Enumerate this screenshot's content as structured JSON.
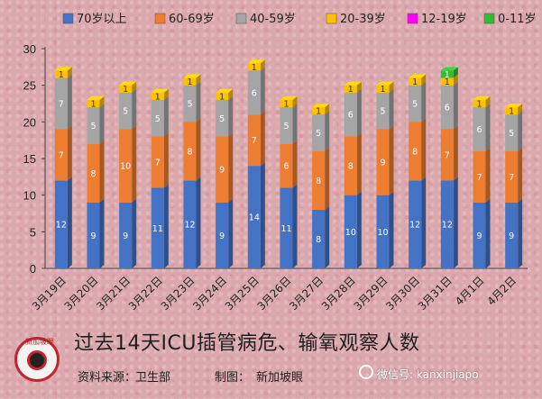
{
  "chart_data": {
    "type": "bar",
    "stacked": true,
    "categories": [
      "3月19日",
      "3月20日",
      "3月21日",
      "3月22日",
      "3月23日",
      "3月24日",
      "3月25日",
      "3月26日",
      "3月27日",
      "3月28日",
      "3月29日",
      "3月30日",
      "3月31日",
      "4月1日",
      "4月2日"
    ],
    "series": [
      {
        "name": "70岁以上",
        "color": "#4472c4",
        "values": [
          12,
          9,
          9,
          11,
          12,
          9,
          14,
          11,
          8,
          10,
          10,
          12,
          12,
          9,
          9
        ]
      },
      {
        "name": "60-69岁",
        "color": "#ed7d31",
        "values": [
          7,
          8,
          10,
          7,
          8,
          9,
          7,
          6,
          8,
          8,
          9,
          8,
          7,
          7,
          7
        ]
      },
      {
        "name": "40-59岁",
        "color": "#a5a5a5",
        "values": [
          7,
          5,
          5,
          5,
          5,
          5,
          6,
          5,
          5,
          6,
          5,
          5,
          6,
          6,
          5
        ]
      },
      {
        "name": "20-39岁",
        "color": "#ffc000",
        "values": [
          1,
          1,
          1,
          1,
          1,
          1,
          1,
          1,
          1,
          1,
          1,
          1,
          1,
          1,
          1
        ]
      },
      {
        "name": "12-19岁",
        "color": "#ff00ff",
        "values": [
          0,
          0,
          0,
          0,
          0,
          0,
          0,
          0,
          0,
          0,
          0,
          0,
          0,
          0,
          0
        ]
      },
      {
        "name": "0-11岁",
        "color": "#33bb33",
        "values": [
          0,
          0,
          0,
          0,
          0,
          0,
          0,
          0,
          0,
          0,
          0,
          0,
          1,
          0,
          0
        ]
      }
    ],
    "ylim": [
      0,
      30
    ],
    "yticks": [
      0,
      5,
      10,
      15,
      20,
      25,
      30
    ],
    "grid": false,
    "legend_position": "top"
  },
  "footer": {
    "title": "过去14天ICU插管病危、输氧观察人数",
    "source_label": "资料来源：",
    "source_value": "卫生部",
    "maker_label": "制图：",
    "maker_value": "新加坡眼",
    "wechat": "微信号: kanxinjiapo",
    "logo_text": "新加坡眼"
  }
}
